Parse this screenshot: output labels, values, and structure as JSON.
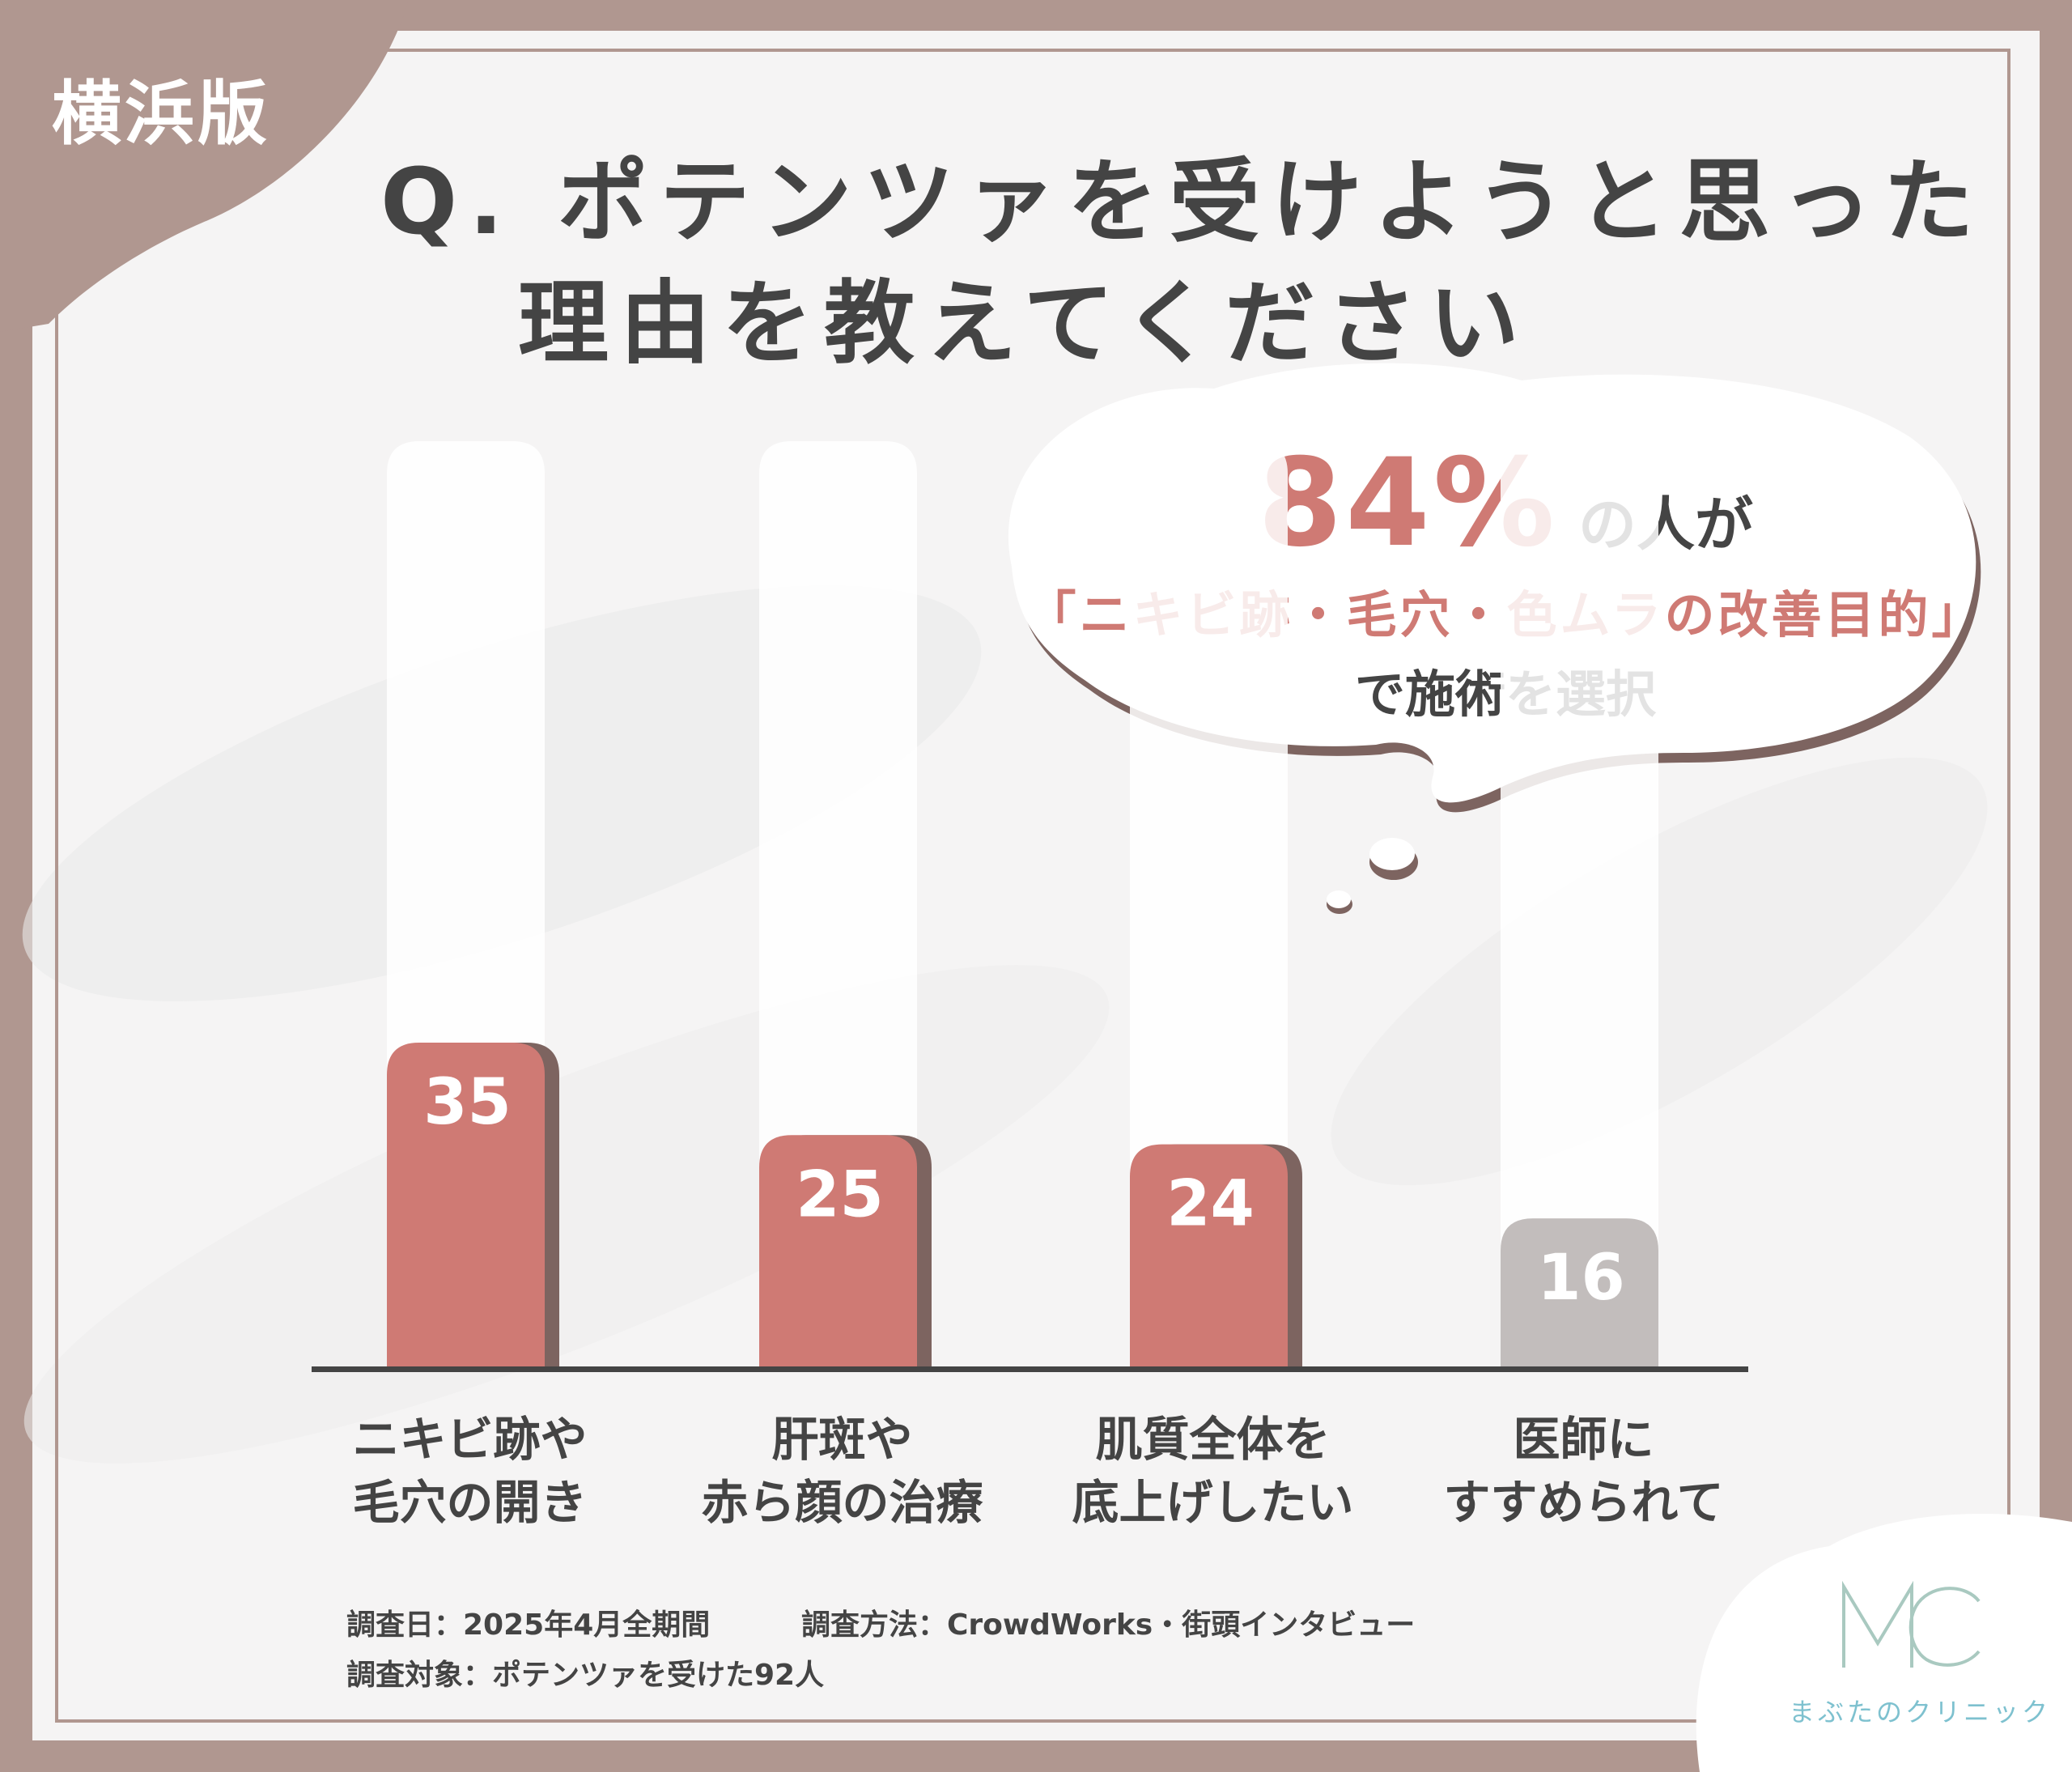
{
  "tag": "横浜版",
  "title": {
    "line1": "Q. ポテンツァを受けようと思った",
    "line2": "理由を教えてください"
  },
  "callout": {
    "percent": "84%",
    "suffix": "の人が",
    "highlight": "「ニキビ跡・毛穴・色ムラの改善目的」",
    "tail": "で施術を選択"
  },
  "chart_data": {
    "type": "bar",
    "categories": [
      [
        "ニキビ跡や",
        "毛穴の開き"
      ],
      [
        "肝斑や",
        "赤ら顔の治療"
      ],
      [
        "肌質全体を",
        "底上げしたい"
      ],
      [
        "医師に",
        "すすめられて"
      ]
    ],
    "values": [
      35,
      25,
      24,
      16
    ],
    "value_labels": [
      "35",
      "25",
      "24",
      "16"
    ],
    "highlighted": [
      true,
      true,
      true,
      false
    ],
    "ylim": [
      0,
      100
    ],
    "colors": {
      "highlight": "#cf7a74",
      "highlight_shadow": "#7d6460",
      "muted": "#c2bdbc",
      "axis": "#444444",
      "track": "#ffffff"
    }
  },
  "footer": {
    "survey_date": "調査日：2025年4月全期間",
    "survey_method": "調査方法：CrowdWorks・街頭インタビュー",
    "survey_target": "調査対象：ポテンツァを受けた92人"
  },
  "logo": {
    "mark": "MC",
    "name": "まぶたのクリニック",
    "color": "#7ec1cf"
  },
  "colors": {
    "frame": "#b09790",
    "background": "#f5f4f4",
    "text": "#444444",
    "accent": "#cf7a74"
  }
}
